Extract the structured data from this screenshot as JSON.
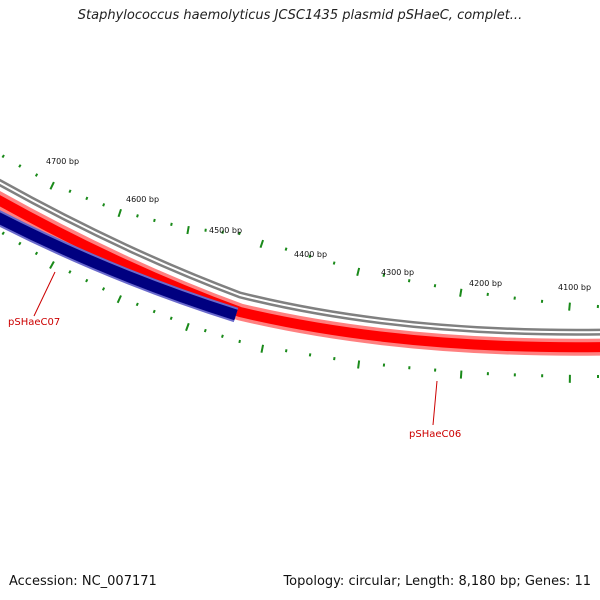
{
  "title": "Staphylococcus haemolyticus JCSC1435 plasmid pSHaeC, complet...",
  "footer": {
    "accession_label": "Accession:",
    "accession_value": "NC_007171",
    "topology_label": "Topology:",
    "topology_value": "circular",
    "length_label": "Length:",
    "length_value": "8,180 bp",
    "genes_label": "Genes:",
    "genes_value": "11",
    "sep1": "; ",
    "sep2": "; "
  },
  "ticks": {
    "labels": [
      "4700 bp",
      "4600 bp",
      "4500 bp",
      "4400 bp",
      "4300 bp",
      "4200 bp",
      "4100 bp"
    ],
    "color": "#1a8a1a"
  },
  "genes": [
    {
      "name": "pSHaeC07",
      "color": "#000080"
    },
    {
      "name": "pSHaeC06",
      "color": "#ff0000"
    }
  ],
  "backbone_color": "#808080"
}
